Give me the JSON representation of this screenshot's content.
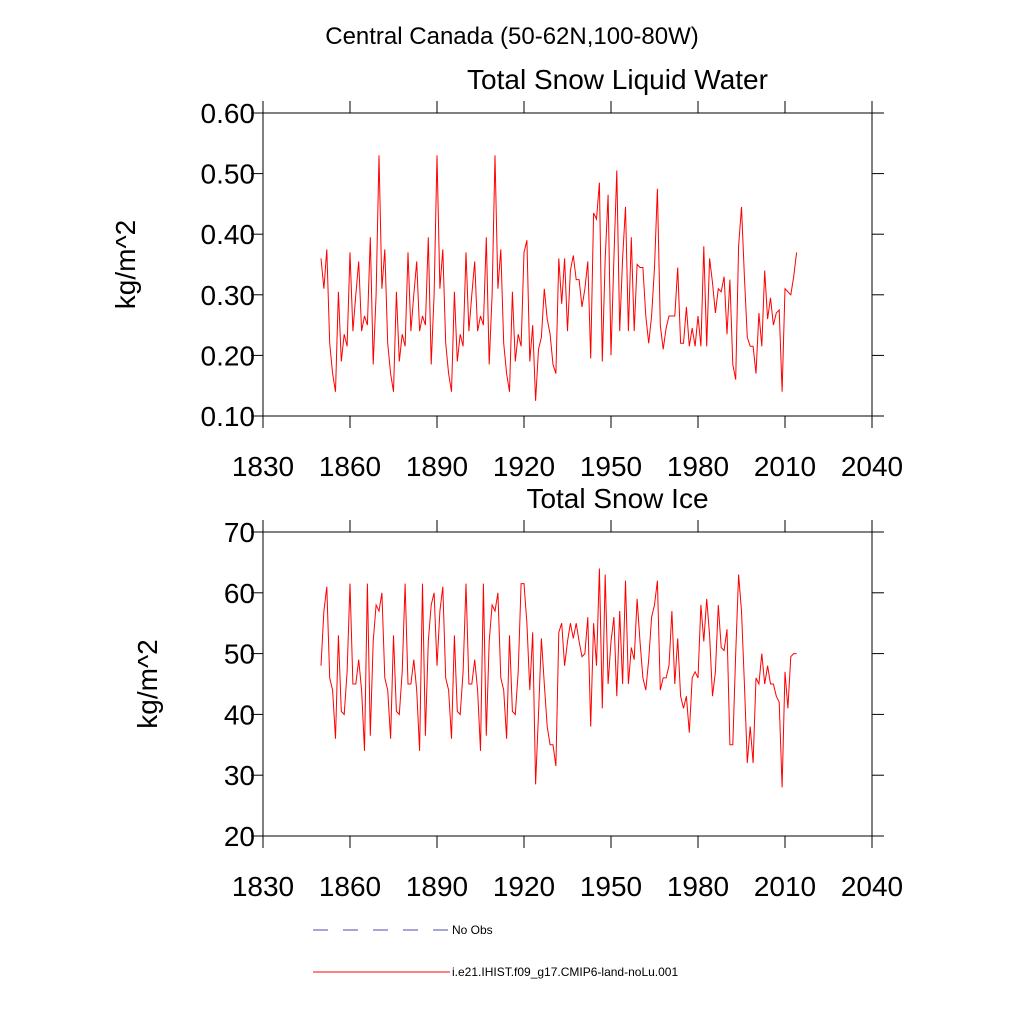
{
  "title": "Central Canada (50-62N,100-80W)",
  "legend": [
    {
      "name": "No Obs",
      "color": "#4b4bb4",
      "dash": true
    },
    {
      "name": "i.e21.IHIST.f09_g17.CMIP6-land-noLu.001",
      "color": "#ff0000",
      "dash": false
    }
  ],
  "chart_data": [
    {
      "type": "line",
      "title": "Total Snow Liquid Water",
      "y_label": "kg/m^2",
      "xlim": [
        1830,
        2040
      ],
      "xticks": [
        1830,
        1860,
        1890,
        1920,
        1950,
        1980,
        2010,
        2040
      ],
      "ylim": [
        0.1,
        0.6
      ],
      "yticks": [
        {
          "value": 0.1,
          "label": "0.10"
        },
        {
          "value": 0.2,
          "label": "0.20"
        },
        {
          "value": 0.3,
          "label": "0.30"
        },
        {
          "value": 0.4,
          "label": "0.40"
        },
        {
          "value": 0.5,
          "label": "0.50"
        },
        {
          "value": 0.6,
          "label": "0.60"
        }
      ],
      "x": [
        1850,
        1851,
        1852,
        1853,
        1854,
        1855,
        1856,
        1857,
        1858,
        1859,
        1860,
        1861,
        1862,
        1863,
        1864,
        1865,
        1866,
        1867,
        1868,
        1869,
        1870,
        1871,
        1872,
        1873,
        1874,
        1875,
        1876,
        1877,
        1878,
        1879,
        1880,
        1881,
        1882,
        1883,
        1884,
        1885,
        1886,
        1887,
        1888,
        1889,
        1890,
        1891,
        1892,
        1893,
        1894,
        1895,
        1896,
        1897,
        1898,
        1899,
        1900,
        1901,
        1902,
        1903,
        1904,
        1905,
        1906,
        1907,
        1908,
        1909,
        1910,
        1911,
        1912,
        1913,
        1914,
        1915,
        1916,
        1917,
        1918,
        1919,
        1920,
        1921,
        1922,
        1923,
        1924,
        1925,
        1926,
        1927,
        1928,
        1929,
        1930,
        1931,
        1932,
        1933,
        1934,
        1935,
        1936,
        1937,
        1938,
        1939,
        1940,
        1941,
        1942,
        1943,
        1944,
        1945,
        1946,
        1947,
        1948,
        1949,
        1950,
        1951,
        1952,
        1953,
        1954,
        1955,
        1956,
        1957,
        1958,
        1959,
        1960,
        1961,
        1962,
        1963,
        1964,
        1965,
        1966,
        1967,
        1968,
        1969,
        1970,
        1971,
        1972,
        1973,
        1974,
        1975,
        1976,
        1977,
        1978,
        1979,
        1980,
        1981,
        1982,
        1983,
        1984,
        1985,
        1986,
        1987,
        1988,
        1989,
        1990,
        1991,
        1992,
        1993,
        1994,
        1995,
        1996,
        1997,
        1998,
        1999,
        2000,
        2001,
        2002,
        2003,
        2004,
        2005,
        2006,
        2007,
        2008,
        2009,
        2010,
        2011,
        2012,
        2013,
        2014
      ],
      "series": [
        {
          "color": "#ff0000",
          "values": [
            0.36,
            0.31,
            0.375,
            0.22,
            0.17,
            0.14,
            0.305,
            0.19,
            0.235,
            0.215,
            0.37,
            0.24,
            0.3,
            0.355,
            0.24,
            0.265,
            0.25,
            0.395,
            0.185,
            0.3,
            0.53,
            0.31,
            0.375,
            0.22,
            0.17,
            0.14,
            0.305,
            0.19,
            0.235,
            0.215,
            0.37,
            0.24,
            0.3,
            0.355,
            0.24,
            0.265,
            0.25,
            0.395,
            0.185,
            0.3,
            0.53,
            0.31,
            0.375,
            0.22,
            0.17,
            0.14,
            0.305,
            0.19,
            0.235,
            0.215,
            0.37,
            0.24,
            0.3,
            0.355,
            0.24,
            0.265,
            0.25,
            0.395,
            0.185,
            0.3,
            0.53,
            0.31,
            0.375,
            0.22,
            0.17,
            0.14,
            0.305,
            0.19,
            0.235,
            0.215,
            0.37,
            0.39,
            0.19,
            0.25,
            0.125,
            0.21,
            0.23,
            0.31,
            0.26,
            0.235,
            0.185,
            0.17,
            0.36,
            0.285,
            0.36,
            0.24,
            0.34,
            0.365,
            0.325,
            0.325,
            0.28,
            0.31,
            0.355,
            0.195,
            0.435,
            0.425,
            0.485,
            0.19,
            0.36,
            0.465,
            0.2,
            0.36,
            0.505,
            0.24,
            0.36,
            0.445,
            0.24,
            0.395,
            0.24,
            0.35,
            0.345,
            0.345,
            0.265,
            0.22,
            0.265,
            0.345,
            0.475,
            0.25,
            0.21,
            0.245,
            0.265,
            0.265,
            0.265,
            0.345,
            0.22,
            0.22,
            0.28,
            0.215,
            0.245,
            0.215,
            0.265,
            0.215,
            0.38,
            0.215,
            0.36,
            0.32,
            0.27,
            0.31,
            0.305,
            0.33,
            0.235,
            0.325,
            0.185,
            0.16,
            0.38,
            0.445,
            0.33,
            0.23,
            0.215,
            0.215,
            0.17,
            0.27,
            0.215,
            0.34,
            0.26,
            0.295,
            0.25,
            0.27,
            0.275,
            0.14,
            0.31,
            0.305,
            0.3,
            0.33,
            0.37
          ]
        }
      ]
    },
    {
      "type": "line",
      "title": "Total Snow Ice",
      "y_label": "kg/m^2",
      "xlim": [
        1830,
        2040
      ],
      "xticks": [
        1830,
        1860,
        1890,
        1920,
        1950,
        1980,
        2010,
        2040
      ],
      "ylim": [
        20,
        70
      ],
      "yticks": [
        20,
        30,
        40,
        50,
        60,
        70
      ],
      "x": [
        1850,
        1851,
        1852,
        1853,
        1854,
        1855,
        1856,
        1857,
        1858,
        1859,
        1860,
        1861,
        1862,
        1863,
        1864,
        1865,
        1866,
        1867,
        1868,
        1869,
        1870,
        1871,
        1872,
        1873,
        1874,
        1875,
        1876,
        1877,
        1878,
        1879,
        1880,
        1881,
        1882,
        1883,
        1884,
        1885,
        1886,
        1887,
        1888,
        1889,
        1890,
        1891,
        1892,
        1893,
        1894,
        1895,
        1896,
        1897,
        1898,
        1899,
        1900,
        1901,
        1902,
        1903,
        1904,
        1905,
        1906,
        1907,
        1908,
        1909,
        1910,
        1911,
        1912,
        1913,
        1914,
        1915,
        1916,
        1917,
        1918,
        1919,
        1920,
        1921,
        1922,
        1923,
        1924,
        1925,
        1926,
        1927,
        1928,
        1929,
        1930,
        1931,
        1932,
        1933,
        1934,
        1935,
        1936,
        1937,
        1938,
        1939,
        1940,
        1941,
        1942,
        1943,
        1944,
        1945,
        1946,
        1947,
        1948,
        1949,
        1950,
        1951,
        1952,
        1953,
        1954,
        1955,
        1956,
        1957,
        1958,
        1959,
        1960,
        1961,
        1962,
        1963,
        1964,
        1965,
        1966,
        1967,
        1968,
        1969,
        1970,
        1971,
        1972,
        1973,
        1974,
        1975,
        1976,
        1977,
        1978,
        1979,
        1980,
        1981,
        1982,
        1983,
        1984,
        1985,
        1986,
        1987,
        1988,
        1989,
        1990,
        1991,
        1992,
        1993,
        1994,
        1995,
        1996,
        1997,
        1998,
        1999,
        2000,
        2001,
        2002,
        2003,
        2004,
        2005,
        2006,
        2007,
        2008,
        2009,
        2010,
        2011,
        2012,
        2013,
        2014
      ],
      "series": [
        {
          "color": "#ff0000",
          "values": [
            48,
            57,
            61,
            46,
            44,
            36,
            53,
            40.5,
            40,
            47,
            61.5,
            45,
            45,
            49,
            44,
            34,
            61.5,
            36.5,
            52,
            58,
            57,
            60,
            46,
            44,
            36,
            53,
            40.5,
            40,
            47,
            61.5,
            45,
            45,
            49,
            44,
            34,
            61.5,
            36.5,
            52,
            58,
            60,
            48,
            57,
            61,
            46,
            44,
            36,
            53,
            40.5,
            40,
            47,
            61.5,
            45,
            45,
            49,
            44,
            34,
            61.5,
            36.5,
            52,
            58,
            57,
            60,
            46,
            44,
            36,
            53,
            40.5,
            40,
            47,
            61.5,
            61.5,
            55,
            44,
            53.5,
            28.5,
            40,
            52.5,
            45,
            38,
            35,
            35,
            31.5,
            53.5,
            55,
            48,
            52,
            55,
            52.5,
            55,
            52,
            49.5,
            50,
            56,
            38,
            55,
            48,
            64,
            41,
            63,
            45,
            52,
            56,
            43,
            57,
            45,
            62,
            45,
            51,
            49,
            59,
            52,
            46,
            44,
            49,
            56,
            58,
            62,
            44,
            46,
            46,
            48,
            57,
            45,
            52.5,
            43,
            41,
            43,
            37,
            46,
            47,
            46,
            58,
            52,
            59,
            53,
            43,
            47,
            58,
            51,
            50.5,
            54,
            35,
            35,
            50,
            63,
            57,
            45,
            32,
            38,
            32,
            46,
            45,
            50,
            45,
            48,
            45,
            45,
            43,
            42,
            28,
            47,
            41,
            49.5,
            50,
            50
          ]
        }
      ]
    }
  ]
}
